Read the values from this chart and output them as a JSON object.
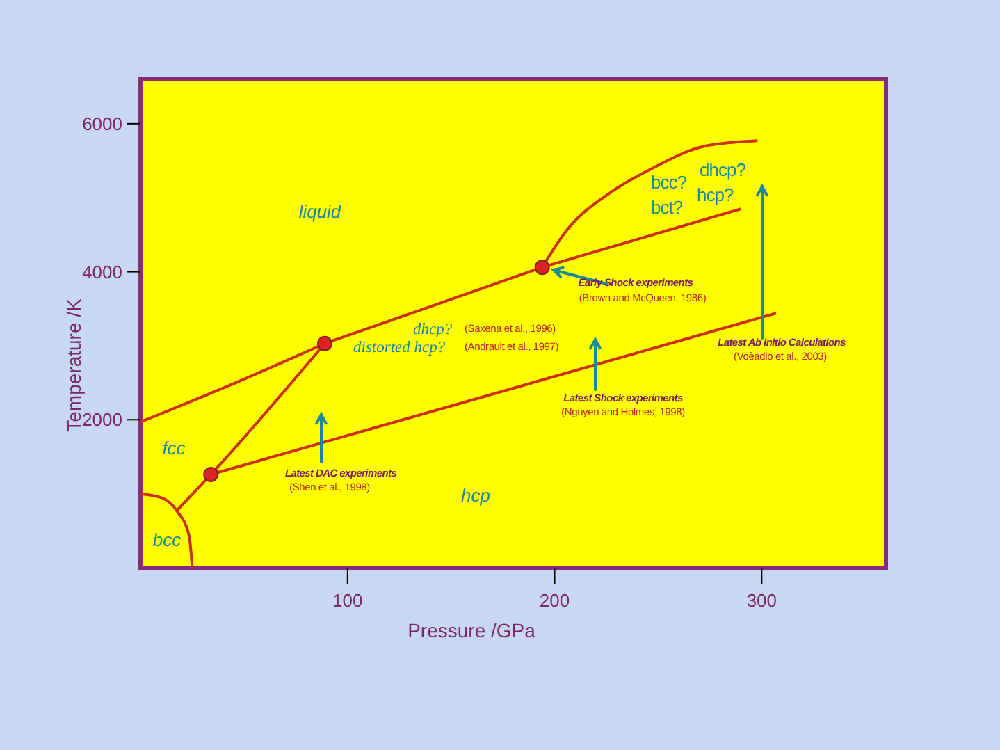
{
  "chart_data": {
    "type": "line",
    "xlabel": "Pressure /GPa",
    "ylabel": "Temperature /K",
    "xlim": [
      0,
      360
    ],
    "ylim": [
      0,
      6600
    ],
    "xticks": [
      100,
      200,
      300
    ],
    "yticks": [
      2000,
      4000,
      6000
    ],
    "grid": false,
    "marker": "none",
    "line_style": "solid",
    "series": [
      {
        "type": "line",
        "color": "#cc3010",
        "x": [
          0,
          46,
          89
        ],
        "values": [
          1970,
          2500,
          3030
        ]
      },
      {
        "type": "line",
        "color": "#cc3010",
        "x": [
          89,
          140,
          194
        ],
        "values": [
          3030,
          3530,
          4060
        ]
      },
      {
        "type": "line",
        "color": "#cc3010",
        "x": [
          194,
          205,
          228,
          246,
          273,
          298
        ],
        "values": [
          4060,
          4530,
          5090,
          5380,
          5700,
          5770
        ]
      },
      {
        "type": "line",
        "color": "#cc3010",
        "x": [
          194,
          290
        ],
        "values": [
          4060,
          4850
        ]
      },
      {
        "type": "line",
        "color": "#cc3010",
        "x": [
          17.5,
          34,
          89
        ],
        "values": [
          770,
          1260,
          3030
        ]
      },
      {
        "type": "line",
        "color": "#cc3010",
        "x": [
          34,
          307
        ],
        "values": [
          1260,
          3440
        ]
      },
      {
        "type": "line",
        "color": "#cc3010",
        "x": [
          0,
          10.7,
          17.5,
          23.5,
          25
        ],
        "values": [
          1000,
          940,
          770,
          430,
          0
        ]
      },
      {
        "type": "scatter",
        "color": "#dd2222",
        "marker": "circle",
        "x": [
          34,
          89,
          194
        ],
        "values": [
          1260,
          3030,
          4060
        ]
      }
    ],
    "annotations": [
      "liquid",
      "fcc",
      "bcc",
      "hcp",
      "dhcp?",
      "distorted hcp?",
      "bcc?",
      "dhcp?",
      "bct?",
      "hcp?",
      "(Saxena et al., 1996)",
      "(Andrault et al., 1997)",
      "Early Shock experiments",
      "(Brown and McQueen, 1986)",
      "Latest Shock experiments",
      "(Nguyen and Holmes, 1998)",
      "Latest Ab Initio Calculations",
      "(Voèadlo et al., 2003)",
      "Latest DAC experiments",
      "(Shen et al., 1998)"
    ]
  }
}
